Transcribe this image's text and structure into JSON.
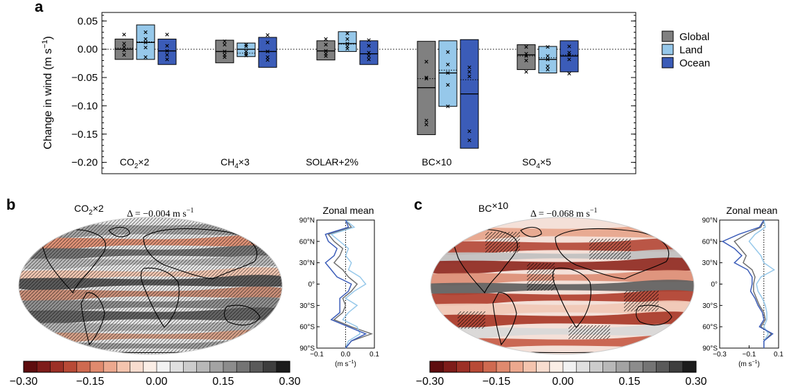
{
  "chart_data": [
    {
      "type": "box",
      "panel_label": "a",
      "ylabel": "Change in wind (m s",
      "ylabel_exp": "−1",
      "ylabel_close": ")",
      "ylim": [
        -0.22,
        0.065
      ],
      "yticks": [
        0.05,
        0.0,
        -0.05,
        -0.1,
        -0.15,
        -0.2
      ],
      "ytick_labels": [
        "0.05",
        "0.00",
        "−0.05",
        "−0.10",
        "−0.15",
        "−0.20"
      ],
      "zero_line": "dotted",
      "legend_position": "right",
      "legend": [
        {
          "name": "Global",
          "color": "#808080"
        },
        {
          "name": "Land",
          "color": "#96c8ea"
        },
        {
          "name": "Ocean",
          "color": "#3b5cb8"
        }
      ],
      "groups": [
        {
          "label_main": "CO",
          "label_sub": "2",
          "label_tail": "×2",
          "boxes": [
            {
              "series": "Global",
              "low": -0.018,
              "high": 0.018,
              "median": 0.0,
              "mean": 0.002,
              "points": [
                0.026,
                0.01,
                0.004,
                -0.002,
                -0.01
              ]
            },
            {
              "series": "Land",
              "low": -0.018,
              "high": 0.043,
              "median": 0.012,
              "mean": 0.013,
              "points": [
                0.03,
                0.018,
                0.012,
                0.003,
                -0.014
              ]
            },
            {
              "series": "Ocean",
              "low": -0.027,
              "high": 0.018,
              "median": -0.003,
              "mean": -0.003,
              "points": [
                0.026,
                0.006,
                -0.003,
                -0.01,
                -0.018
              ]
            }
          ]
        },
        {
          "label_main": "CH",
          "label_sub": "4",
          "label_tail": "×3",
          "boxes": [
            {
              "series": "Global",
              "low": -0.024,
              "high": 0.016,
              "median": -0.004,
              "mean": -0.004,
              "points": [
                0.014,
                0.008,
                -0.004,
                -0.01,
                -0.014
              ]
            },
            {
              "series": "Land",
              "low": -0.013,
              "high": 0.011,
              "median": 0.0,
              "mean": -0.007,
              "points": [
                0.008,
                0.005,
                -0.004,
                -0.008,
                -0.011
              ]
            },
            {
              "series": "Ocean",
              "low": -0.032,
              "high": 0.021,
              "median": -0.004,
              "mean": -0.004,
              "points": [
                0.025,
                0.012,
                -0.004,
                -0.014,
                -0.019
              ]
            }
          ]
        },
        {
          "label_main": "SOLAR+2%",
          "label_sub": "",
          "label_tail": "",
          "boxes": [
            {
              "series": "Global",
              "low": -0.019,
              "high": 0.015,
              "median": -0.003,
              "mean": -0.003,
              "points": [
                0.018,
                0.008,
                -0.003,
                -0.008,
                -0.012
              ]
            },
            {
              "series": "Land",
              "low": -0.004,
              "high": 0.031,
              "median": 0.01,
              "mean": 0.009,
              "points": [
                0.028,
                0.018,
                0.01,
                0.005,
                0.001
              ]
            },
            {
              "series": "Ocean",
              "low": -0.027,
              "high": 0.015,
              "median": -0.008,
              "mean": -0.008,
              "points": [
                0.016,
                0.006,
                -0.006,
                -0.012,
                -0.018
              ]
            }
          ]
        },
        {
          "label_main": "BC",
          "label_sub": "",
          "label_tail": "×10",
          "boxes": [
            {
              "series": "Global",
              "low": -0.151,
              "high": 0.014,
              "median": -0.068,
              "mean": -0.052,
              "points": [
                -0.022,
                -0.05,
                -0.052,
                -0.126,
                -0.133
              ]
            },
            {
              "series": "Land",
              "low": -0.101,
              "high": 0.015,
              "median": -0.042,
              "mean": -0.037,
              "points": [
                -0.005,
                -0.027,
                -0.042,
                -0.063,
                -0.101
              ]
            },
            {
              "series": "Ocean",
              "low": -0.175,
              "high": 0.017,
              "median": -0.079,
              "mean": -0.054,
              "points": [
                -0.032,
                -0.04,
                -0.048,
                -0.145,
                -0.161
              ]
            }
          ]
        },
        {
          "label_main": "SO",
          "label_sub": "4",
          "label_tail": "×5",
          "boxes": [
            {
              "series": "Global",
              "low": -0.036,
              "high": 0.008,
              "median": -0.01,
              "mean": -0.012,
              "points": [
                0.004,
                -0.008,
                -0.012,
                -0.02,
                -0.04
              ]
            },
            {
              "series": "Land",
              "low": -0.042,
              "high": 0.005,
              "median": -0.018,
              "mean": -0.015,
              "points": [
                0.004,
                -0.012,
                -0.018,
                -0.03,
                -0.036
              ]
            },
            {
              "series": "Ocean",
              "low": -0.04,
              "high": 0.015,
              "median": -0.012,
              "mean": -0.01,
              "points": [
                0.005,
                -0.006,
                -0.01,
                -0.018,
                -0.043
              ]
            }
          ]
        }
      ]
    },
    {
      "type": "map",
      "panel_label": "b",
      "experiment_main": "CO",
      "experiment_sub": "2",
      "experiment_tail": "×2",
      "delta_text": "Δ = −0.004 m s",
      "delta_exp": "−1",
      "colorbar_ticks": [
        "−0.30",
        "−0.15",
        "0.00",
        "0.15",
        "0.30"
      ],
      "colorbar_range": [
        -0.3,
        0.3
      ]
    },
    {
      "type": "line",
      "panel_label_of": "b",
      "title": "Zonal mean",
      "xlabel": "(m s",
      "xlabel_exp": "−1",
      "xlabel_close": ")",
      "xlim": [
        -0.1,
        0.1
      ],
      "xticks": [
        "−0.1",
        "0.0",
        "0.1"
      ],
      "xtick_values": [
        -0.1,
        0.0,
        0.1
      ],
      "yticks": [
        "90°N",
        "60°N",
        "30°N",
        "0°",
        "30°S",
        "60°S",
        "90°S"
      ],
      "ytick_values": [
        90,
        60,
        30,
        0,
        -30,
        -60,
        -90
      ],
      "lat": [
        90,
        80,
        70,
        60,
        50,
        40,
        30,
        20,
        10,
        0,
        -10,
        -20,
        -30,
        -40,
        -50,
        -60,
        -70,
        -80,
        -90
      ],
      "series": [
        {
          "name": "Global",
          "color": "#707070",
          "values": [
            0.0,
            0.02,
            -0.06,
            -0.04,
            -0.01,
            -0.02,
            -0.04,
            -0.01,
            0.01,
            0.04,
            0.02,
            -0.01,
            0.0,
            -0.01,
            -0.04,
            0.02,
            0.09,
            0.02,
            0.0
          ]
        },
        {
          "name": "Land",
          "color": "#96c8ea",
          "values": [
            0.0,
            0.03,
            -0.05,
            -0.02,
            0.01,
            0.0,
            0.02,
            0.01,
            0.05,
            0.07,
            0.03,
            0.0,
            0.04,
            0.01,
            -0.01,
            0.04,
            0.05,
            0.01,
            0.0
          ]
        },
        {
          "name": "Ocean",
          "color": "#3b5cb8",
          "values": [
            0.0,
            0.01,
            -0.07,
            -0.06,
            -0.03,
            -0.04,
            -0.07,
            -0.05,
            -0.03,
            0.02,
            0.01,
            -0.02,
            -0.02,
            -0.02,
            -0.05,
            0.01,
            0.07,
            0.02,
            0.0
          ]
        }
      ]
    },
    {
      "type": "map",
      "panel_label": "c",
      "experiment_main": "BC",
      "experiment_sub": "",
      "experiment_tail": "×10",
      "delta_text": "Δ = −0.068 m s",
      "delta_exp": "−1",
      "colorbar_ticks": [
        "−0.30",
        "−0.15",
        "0.00",
        "0.15",
        "0.30"
      ],
      "colorbar_range": [
        -0.3,
        0.3
      ]
    },
    {
      "type": "line",
      "panel_label_of": "c",
      "title": "Zonal mean",
      "xlabel": "(m s",
      "xlabel_exp": "−1",
      "xlabel_close": ")",
      "xlim": [
        -0.3,
        0.1
      ],
      "xticks": [
        "−0.3",
        "−0.1",
        "0.1"
      ],
      "xtick_values": [
        -0.3,
        -0.1,
        0.1
      ],
      "yticks": [
        "90°N",
        "60°N",
        "30°N",
        "0°",
        "30°S",
        "60°S",
        "90°S"
      ],
      "ytick_values": [
        90,
        60,
        30,
        0,
        -30,
        -60,
        -90
      ],
      "lat": [
        90,
        80,
        70,
        60,
        50,
        40,
        30,
        20,
        10,
        0,
        -10,
        -20,
        -30,
        -40,
        -50,
        -60,
        -70,
        -80,
        -90
      ],
      "series": [
        {
          "name": "Global",
          "color": "#707070",
          "values": [
            0.0,
            -0.02,
            -0.12,
            -0.2,
            -0.16,
            -0.12,
            -0.14,
            -0.08,
            -0.06,
            -0.07,
            -0.07,
            -0.05,
            -0.03,
            0.0,
            0.01,
            -0.02,
            0.05,
            0.0,
            0.0
          ]
        },
        {
          "name": "Land",
          "color": "#96c8ea",
          "values": [
            0.0,
            0.01,
            -0.06,
            -0.1,
            -0.06,
            -0.02,
            0.0,
            0.07,
            -0.02,
            -0.05,
            -0.04,
            -0.01,
            0.01,
            0.02,
            0.02,
            0.0,
            0.03,
            0.0,
            0.0
          ]
        },
        {
          "name": "Ocean",
          "color": "#3b5cb8",
          "values": [
            0.0,
            -0.03,
            -0.17,
            -0.28,
            -0.2,
            -0.15,
            -0.2,
            -0.11,
            -0.08,
            -0.08,
            -0.09,
            -0.06,
            -0.04,
            -0.01,
            0.0,
            -0.03,
            0.06,
            0.0,
            0.0
          ]
        }
      ]
    }
  ]
}
